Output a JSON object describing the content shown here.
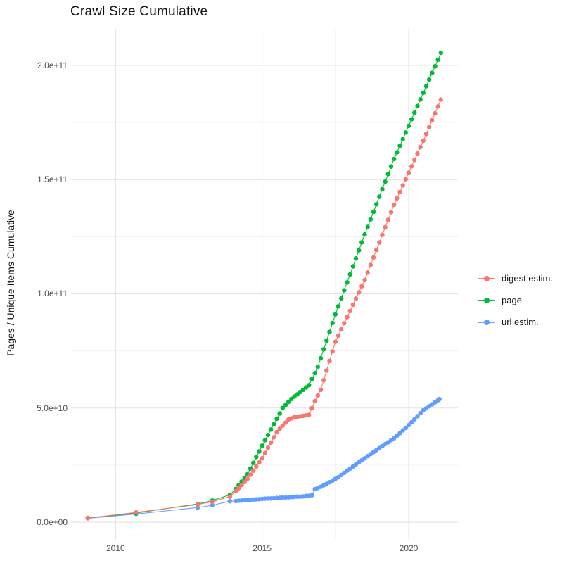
{
  "title": "Crawl Size Cumulative",
  "y_axis": {
    "label": "Pages / Unique Items Cumulative",
    "tick_labels": [
      "0.0e+00",
      "5.0e+10",
      "1.0e+11",
      "1.5e+11",
      "2.0e+11"
    ],
    "tick_values": [
      0,
      50000000000.0,
      100000000000.0,
      150000000000.0,
      200000000000.0
    ]
  },
  "x_axis": {
    "tick_labels": [
      "2010",
      "2015",
      "2020"
    ],
    "tick_values": [
      2010,
      2015,
      2020
    ]
  },
  "legend": {
    "position": "right",
    "items": [
      {
        "label": "digest estim.",
        "color": "#F8766D"
      },
      {
        "label": "page",
        "color": "#00BA38"
      },
      {
        "label": "url estim.",
        "color": "#619CFF"
      }
    ]
  },
  "colors": {
    "grid_major": "#E3E3E3",
    "grid_minor": "#EFEFEF",
    "axis_text": "#4d4d4d",
    "background": "#ffffff"
  },
  "chart_data": {
    "type": "line",
    "title": "Crawl Size Cumulative",
    "xlabel": "",
    "ylabel": "Pages / Unique Items Cumulative",
    "xlim": [
      2008.48,
      2021.68
    ],
    "ylim": [
      -8000000000.0,
      216000000000.0
    ],
    "x_major": [
      2010,
      2015,
      2020
    ],
    "x_minor": [
      2012.5,
      2017.5
    ],
    "y_major": [
      0,
      50000000000.0,
      100000000000.0,
      150000000000.0,
      200000000000.0
    ],
    "y_minor": [
      25000000000.0,
      75000000000.0,
      125000000000.0,
      175000000000.0
    ],
    "grid": true,
    "legend_position": "right",
    "marker_radius": 3.2,
    "series": [
      {
        "name": "digest estim.",
        "color": "#F8766D",
        "points": [
          [
            2009.05,
            1800000000.0
          ],
          [
            2010.7,
            4300000000.0
          ],
          [
            2012.8,
            7700000000.0
          ],
          [
            2013.3,
            9000000000.0
          ],
          [
            2013.9,
            11200000000.0
          ],
          [
            2014.1,
            13600000000.0
          ],
          [
            2014.2,
            14900000000.0
          ],
          [
            2014.3,
            16300000000.0
          ],
          [
            2014.4,
            17600000000.0
          ],
          [
            2014.5,
            19000000000.0
          ],
          [
            2014.6,
            20800000000.0
          ],
          [
            2014.7,
            22600000000.0
          ],
          [
            2014.8,
            24400000000.0
          ],
          [
            2014.9,
            26200000000.0
          ],
          [
            2015.0,
            28000000000.0
          ],
          [
            2015.1,
            30300000000.0
          ],
          [
            2015.2,
            32600000000.0
          ],
          [
            2015.3,
            34900000000.0
          ],
          [
            2015.4,
            37200000000.0
          ],
          [
            2015.5,
            39500000000.0
          ],
          [
            2015.6,
            40900000000.0
          ],
          [
            2015.7,
            42300000000.0
          ],
          [
            2015.8,
            43600000000.0
          ],
          [
            2015.9,
            45000000000.0
          ],
          [
            2016.0,
            45500000000.0
          ],
          [
            2016.1,
            46000000000.0
          ],
          [
            2016.2,
            46200000000.0
          ],
          [
            2016.3,
            46400000000.0
          ],
          [
            2016.4,
            46600000000.0
          ],
          [
            2016.5,
            46800000000.0
          ],
          [
            2016.6,
            47000000000.0
          ],
          [
            2016.7,
            50000000000.0
          ],
          [
            2016.8,
            53000000000.0
          ],
          [
            2016.9,
            55500000000.0
          ],
          [
            2017.0,
            58000000000.0
          ],
          [
            2017.1,
            62200000000.0
          ],
          [
            2017.2,
            66400000000.0
          ],
          [
            2017.3,
            70600000000.0
          ],
          [
            2017.4,
            74800000000.0
          ],
          [
            2017.5,
            79000000000.0
          ],
          [
            2017.6,
            81700000000.0
          ],
          [
            2017.7,
            84400000000.0
          ],
          [
            2017.8,
            87100000000.0
          ],
          [
            2017.9,
            89800000000.0
          ],
          [
            2018.0,
            92500000000.0
          ],
          [
            2018.1,
            95200000000.0
          ],
          [
            2018.2,
            97900000000.0
          ],
          [
            2018.3,
            100600000000.0
          ],
          [
            2018.4,
            103300000000.0
          ],
          [
            2018.5,
            106000000000.0
          ],
          [
            2018.6,
            109300000000.0
          ],
          [
            2018.7,
            112600000000.0
          ],
          [
            2018.8,
            115900000000.0
          ],
          [
            2018.9,
            119200000000.0
          ],
          [
            2019.0,
            122500000000.0
          ],
          [
            2019.1,
            125800000000.0
          ],
          [
            2019.2,
            129100000000.0
          ],
          [
            2019.3,
            132400000000.0
          ],
          [
            2019.4,
            135700000000.0
          ],
          [
            2019.5,
            139000000000.0
          ],
          [
            2019.6,
            141800000000.0
          ],
          [
            2019.7,
            144600000000.0
          ],
          [
            2019.8,
            147400000000.0
          ],
          [
            2019.9,
            150200000000.0
          ],
          [
            2020.0,
            153000000000.0
          ],
          [
            2020.1,
            155800000000.0
          ],
          [
            2020.2,
            158600000000.0
          ],
          [
            2020.3,
            161400000000.0
          ],
          [
            2020.4,
            164200000000.0
          ],
          [
            2020.5,
            167000000000.0
          ],
          [
            2020.6,
            170000000000.0
          ],
          [
            2020.7,
            173000000000.0
          ],
          [
            2020.8,
            176000000000.0
          ],
          [
            2020.9,
            179000000000.0
          ],
          [
            2021.0,
            182000000000.0
          ],
          [
            2021.1,
            185000000000.0
          ]
        ]
      },
      {
        "name": "page",
        "color": "#00BA38",
        "points": [
          [
            2009.05,
            1850000000.0
          ],
          [
            2010.7,
            4000000000.0
          ],
          [
            2012.8,
            8000000000.0
          ],
          [
            2013.3,
            9500000000.0
          ],
          [
            2013.9,
            12000000000.0
          ],
          [
            2014.1,
            14600000000.0
          ],
          [
            2014.2,
            16200000000.0
          ],
          [
            2014.3,
            17800000000.0
          ],
          [
            2014.4,
            19400000000.0
          ],
          [
            2014.5,
            21000000000.0
          ],
          [
            2014.6,
            23500000000.0
          ],
          [
            2014.7,
            26000000000.0
          ],
          [
            2014.8,
            28500000000.0
          ],
          [
            2014.9,
            31000000000.0
          ],
          [
            2015.0,
            33500000000.0
          ],
          [
            2015.1,
            35900000000.0
          ],
          [
            2015.2,
            38200000000.0
          ],
          [
            2015.3,
            40600000000.0
          ],
          [
            2015.4,
            42900000000.0
          ],
          [
            2015.5,
            45300000000.0
          ],
          [
            2015.6,
            47600000000.0
          ],
          [
            2015.7,
            50000000000.0
          ],
          [
            2015.8,
            51300000000.0
          ],
          [
            2015.9,
            52700000000.0
          ],
          [
            2016.0,
            54000000000.0
          ],
          [
            2016.1,
            55000000000.0
          ],
          [
            2016.2,
            56000000000.0
          ],
          [
            2016.3,
            57000000000.0
          ],
          [
            2016.4,
            58000000000.0
          ],
          [
            2016.5,
            59000000000.0
          ],
          [
            2016.6,
            60000000000.0
          ],
          [
            2016.7,
            62700000000.0
          ],
          [
            2016.8,
            65300000000.0
          ],
          [
            2016.9,
            68000000000.0
          ],
          [
            2017.0,
            71800000000.0
          ],
          [
            2017.1,
            75700000000.0
          ],
          [
            2017.2,
            79500000000.0
          ],
          [
            2017.3,
            83300000000.0
          ],
          [
            2017.4,
            87200000000.0
          ],
          [
            2017.5,
            91000000000.0
          ],
          [
            2017.6,
            94500000000.0
          ],
          [
            2017.7,
            98000000000.0
          ],
          [
            2017.8,
            101500000000.0
          ],
          [
            2017.9,
            105000000000.0
          ],
          [
            2018.0,
            108500000000.0
          ],
          [
            2018.1,
            112000000000.0
          ],
          [
            2018.2,
            115500000000.0
          ],
          [
            2018.3,
            119000000000.0
          ],
          [
            2018.4,
            122500000000.0
          ],
          [
            2018.5,
            126000000000.0
          ],
          [
            2018.6,
            129300000000.0
          ],
          [
            2018.7,
            132600000000.0
          ],
          [
            2018.8,
            135900000000.0
          ],
          [
            2018.9,
            139200000000.0
          ],
          [
            2019.0,
            142500000000.0
          ],
          [
            2019.1,
            145800000000.0
          ],
          [
            2019.2,
            149100000000.0
          ],
          [
            2019.3,
            152400000000.0
          ],
          [
            2019.4,
            155700000000.0
          ],
          [
            2019.5,
            159000000000.0
          ],
          [
            2019.6,
            161900000000.0
          ],
          [
            2019.7,
            164800000000.0
          ],
          [
            2019.8,
            167700000000.0
          ],
          [
            2019.9,
            170600000000.0
          ],
          [
            2020.0,
            173500000000.0
          ],
          [
            2020.1,
            176400000000.0
          ],
          [
            2020.2,
            179300000000.0
          ],
          [
            2020.3,
            182200000000.0
          ],
          [
            2020.4,
            185100000000.0
          ],
          [
            2020.5,
            188000000000.0
          ],
          [
            2020.6,
            190900000000.0
          ],
          [
            2020.7,
            193800000000.0
          ],
          [
            2020.8,
            196700000000.0
          ],
          [
            2020.9,
            199600000000.0
          ],
          [
            2021.0,
            202500000000.0
          ],
          [
            2021.1,
            205500000000.0
          ]
        ]
      },
      {
        "name": "url estim.",
        "color": "#619CFF",
        "points": [
          [
            2009.05,
            1700000000.0
          ],
          [
            2010.7,
            3600000000.0
          ],
          [
            2012.8,
            6400000000.0
          ],
          [
            2013.3,
            7400000000.0
          ],
          [
            2013.9,
            9200000000.0
          ],
          [
            2014.1,
            9300000000.0
          ],
          [
            2014.2,
            9400000000.0
          ],
          [
            2014.3,
            9500000000.0
          ],
          [
            2014.4,
            9600000000.0
          ],
          [
            2014.5,
            9700000000.0
          ],
          [
            2014.6,
            9800000000.0
          ],
          [
            2014.7,
            9900000000.0
          ],
          [
            2014.8,
            10000000000.0
          ],
          [
            2014.9,
            10100000000.0
          ],
          [
            2015.0,
            10200000000.0
          ],
          [
            2015.1,
            10300000000.0
          ],
          [
            2015.2,
            10400000000.0
          ],
          [
            2015.3,
            10400000000.0
          ],
          [
            2015.4,
            10500000000.0
          ],
          [
            2015.5,
            10600000000.0
          ],
          [
            2015.6,
            10700000000.0
          ],
          [
            2015.7,
            10800000000.0
          ],
          [
            2015.8,
            10800000000.0
          ],
          [
            2015.9,
            10900000000.0
          ],
          [
            2016.0,
            11000000000.0
          ],
          [
            2016.1,
            11100000000.0
          ],
          [
            2016.2,
            11200000000.0
          ],
          [
            2016.3,
            11200000000.0
          ],
          [
            2016.4,
            11300000000.0
          ],
          [
            2016.5,
            11500000000.0
          ],
          [
            2016.6,
            11600000000.0
          ],
          [
            2016.7,
            11800000000.0
          ],
          [
            2016.8,
            14500000000.0
          ],
          [
            2016.9,
            15000000000.0
          ],
          [
            2017.0,
            15500000000.0
          ],
          [
            2017.1,
            16200000000.0
          ],
          [
            2017.2,
            16800000000.0
          ],
          [
            2017.3,
            17500000000.0
          ],
          [
            2017.4,
            18200000000.0
          ],
          [
            2017.5,
            19000000000.0
          ],
          [
            2017.6,
            19700000000.0
          ],
          [
            2017.7,
            20700000000.0
          ],
          [
            2017.8,
            21600000000.0
          ],
          [
            2017.9,
            22600000000.0
          ],
          [
            2018.0,
            23500000000.0
          ],
          [
            2018.1,
            24400000000.0
          ],
          [
            2018.2,
            25300000000.0
          ],
          [
            2018.3,
            26200000000.0
          ],
          [
            2018.4,
            27100000000.0
          ],
          [
            2018.5,
            28000000000.0
          ],
          [
            2018.6,
            28900000000.0
          ],
          [
            2018.7,
            29800000000.0
          ],
          [
            2018.8,
            30700000000.0
          ],
          [
            2018.9,
            31600000000.0
          ],
          [
            2019.0,
            32500000000.0
          ],
          [
            2019.1,
            33300000000.0
          ],
          [
            2019.2,
            34200000000.0
          ],
          [
            2019.3,
            35000000000.0
          ],
          [
            2019.4,
            35900000000.0
          ],
          [
            2019.5,
            36700000000.0
          ],
          [
            2019.6,
            37900000000.0
          ],
          [
            2019.7,
            39000000000.0
          ],
          [
            2019.8,
            40200000000.0
          ],
          [
            2019.9,
            41300000000.0
          ],
          [
            2020.0,
            42500000000.0
          ],
          [
            2020.1,
            43800000000.0
          ],
          [
            2020.2,
            45100000000.0
          ],
          [
            2020.3,
            46400000000.0
          ],
          [
            2020.4,
            47700000000.0
          ],
          [
            2020.5,
            49000000000.0
          ],
          [
            2020.6,
            49900000000.0
          ],
          [
            2020.7,
            50800000000.0
          ],
          [
            2020.8,
            51600000000.0
          ],
          [
            2020.9,
            52500000000.0
          ],
          [
            2021.0,
            53400000000.0
          ],
          [
            2021.05,
            53900000000.0
          ]
        ]
      }
    ]
  }
}
